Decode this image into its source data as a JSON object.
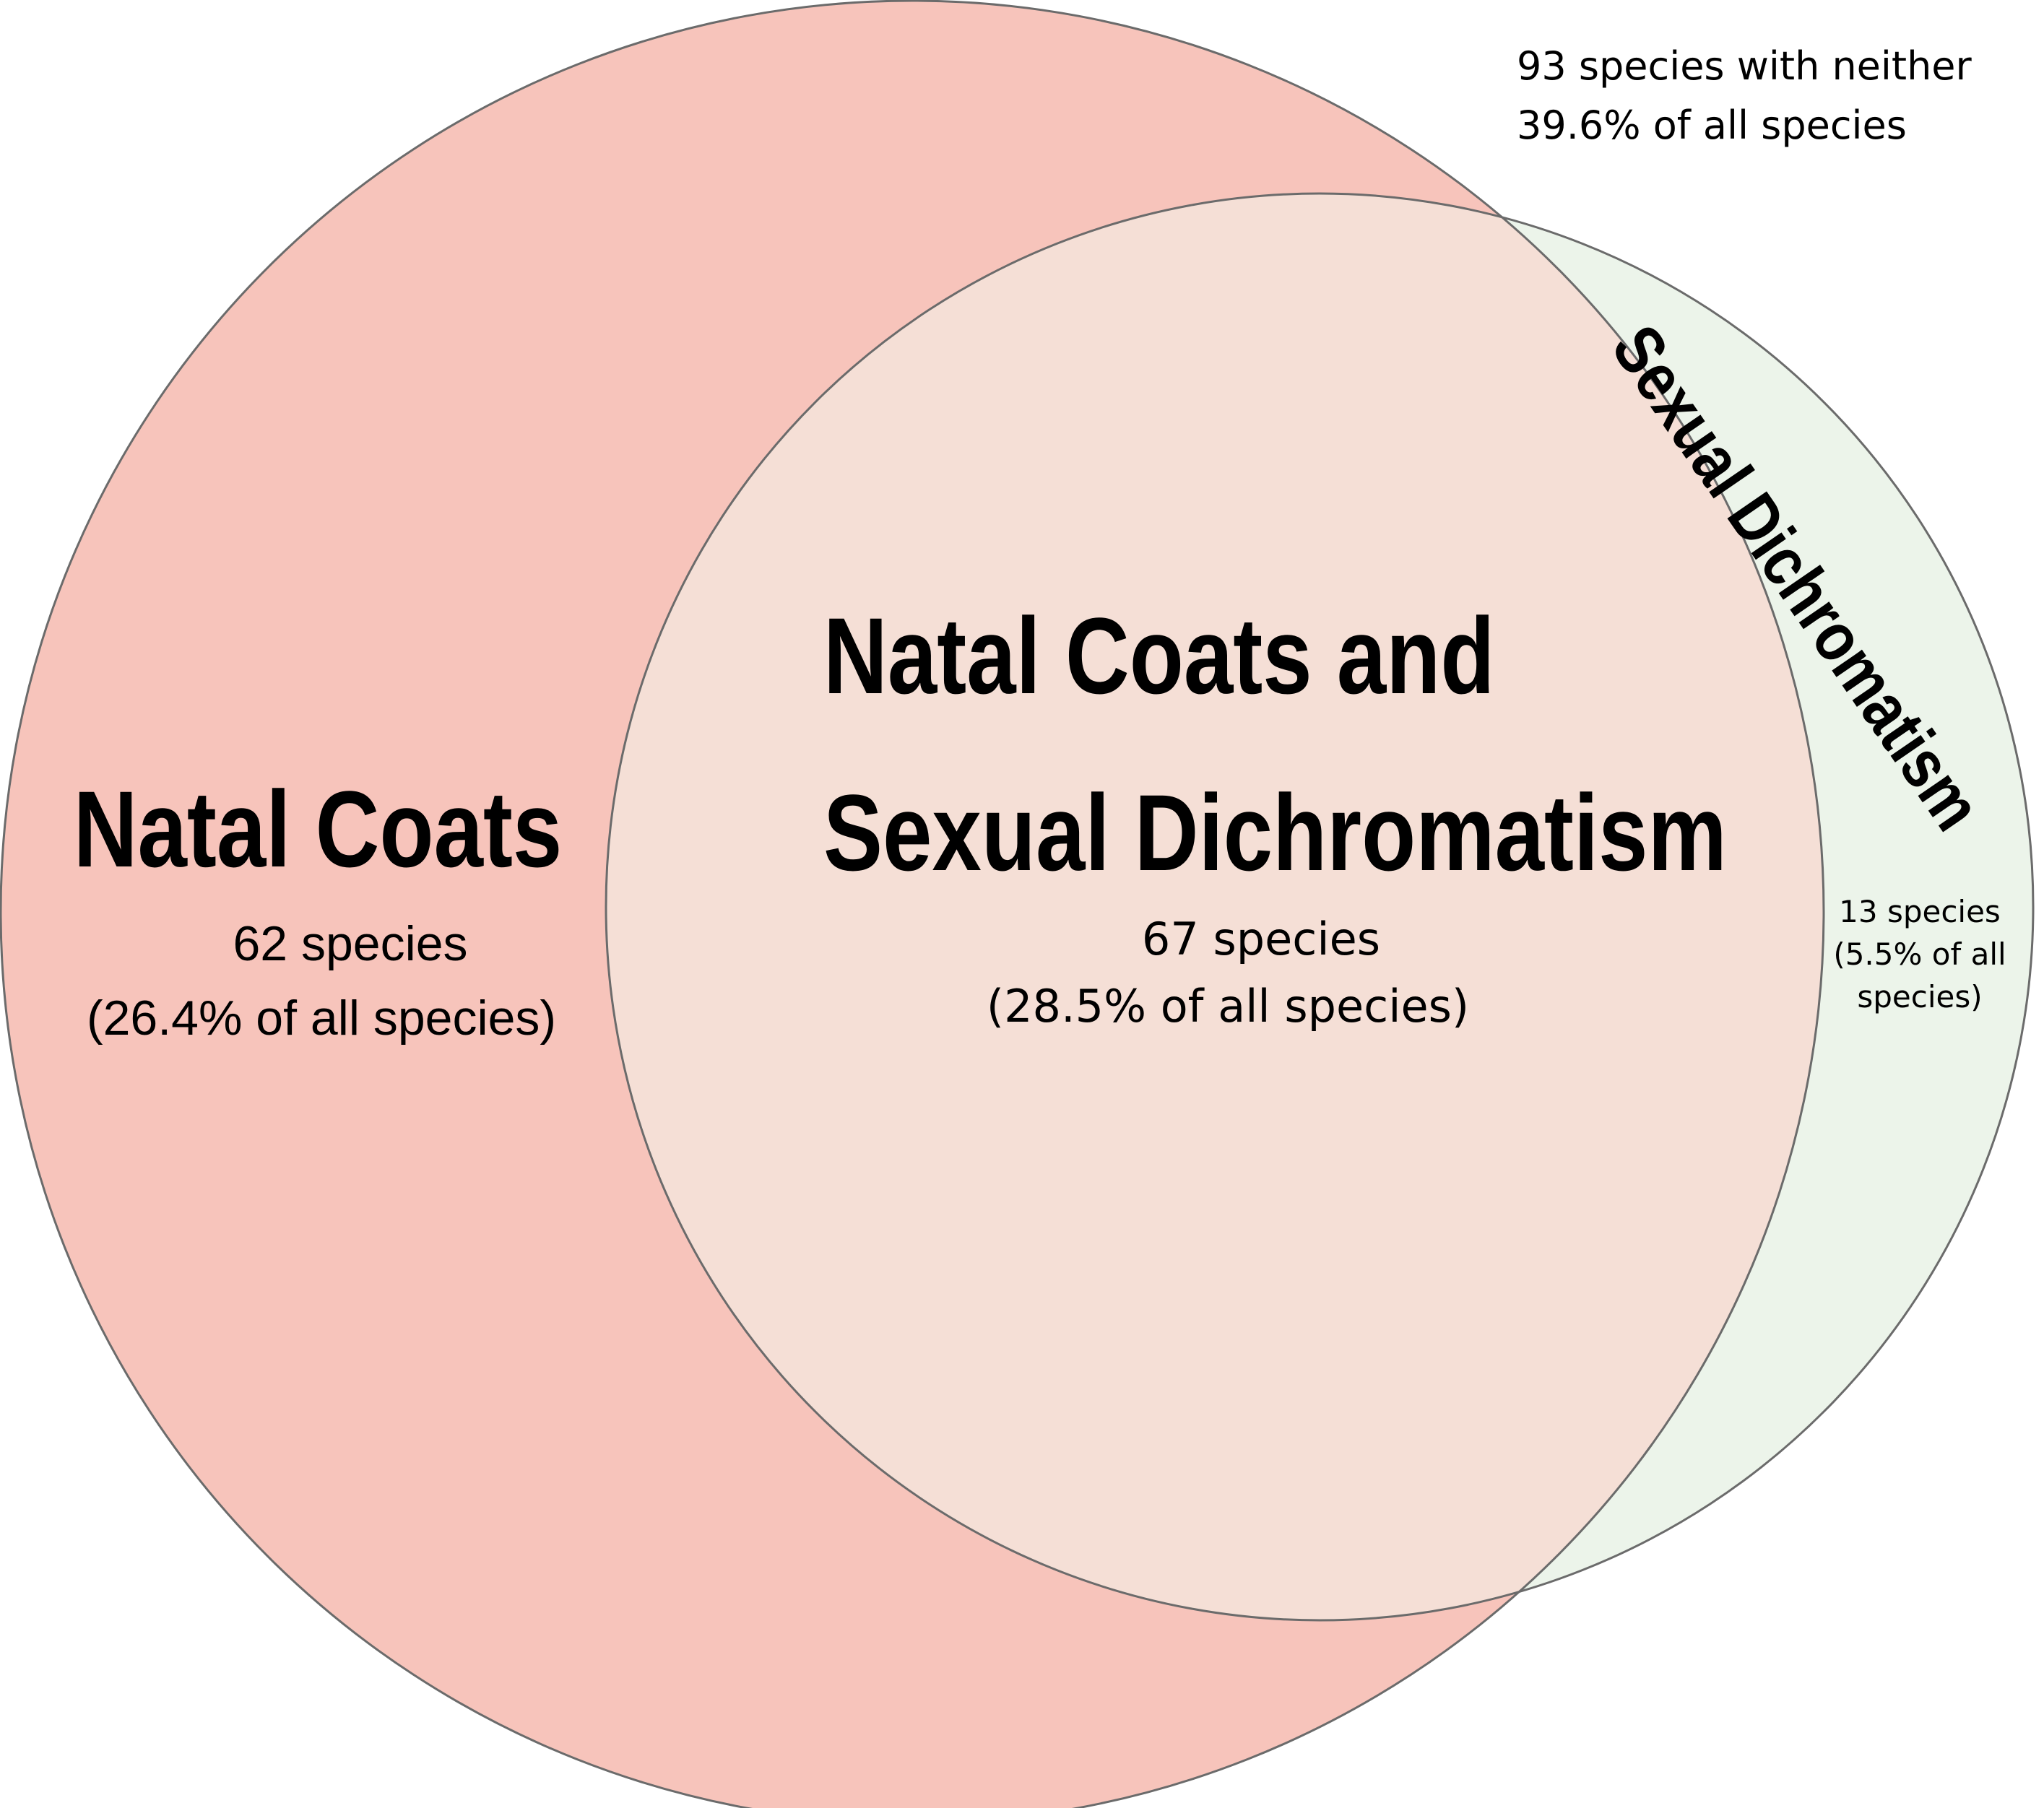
{
  "diagram": {
    "type": "venn",
    "colors": {
      "natal_coats": "#f7c4bb",
      "intersection": "#f5dfd6",
      "sexual_dichromatism": "#ecf4ea",
      "outline": "#6b6b6b"
    },
    "neither": {
      "count_line": "93 species with neither",
      "percent_line": "39.6% of all species"
    },
    "natal_coats_only": {
      "title": "Natal Coats",
      "count_line": "62 species",
      "percent_line": "(26.4% of all species)"
    },
    "both": {
      "title_line1": "Natal Coats and",
      "title_line2": "Sexual Dichromatism",
      "count_line": "67 species",
      "percent_line": "(28.5% of all species)"
    },
    "sexual_dichromatism_only": {
      "title": "Sexual Dichromatism",
      "count_line": "13 species",
      "percent_line1": "(5.5% of all",
      "percent_line2": "species)"
    }
  }
}
